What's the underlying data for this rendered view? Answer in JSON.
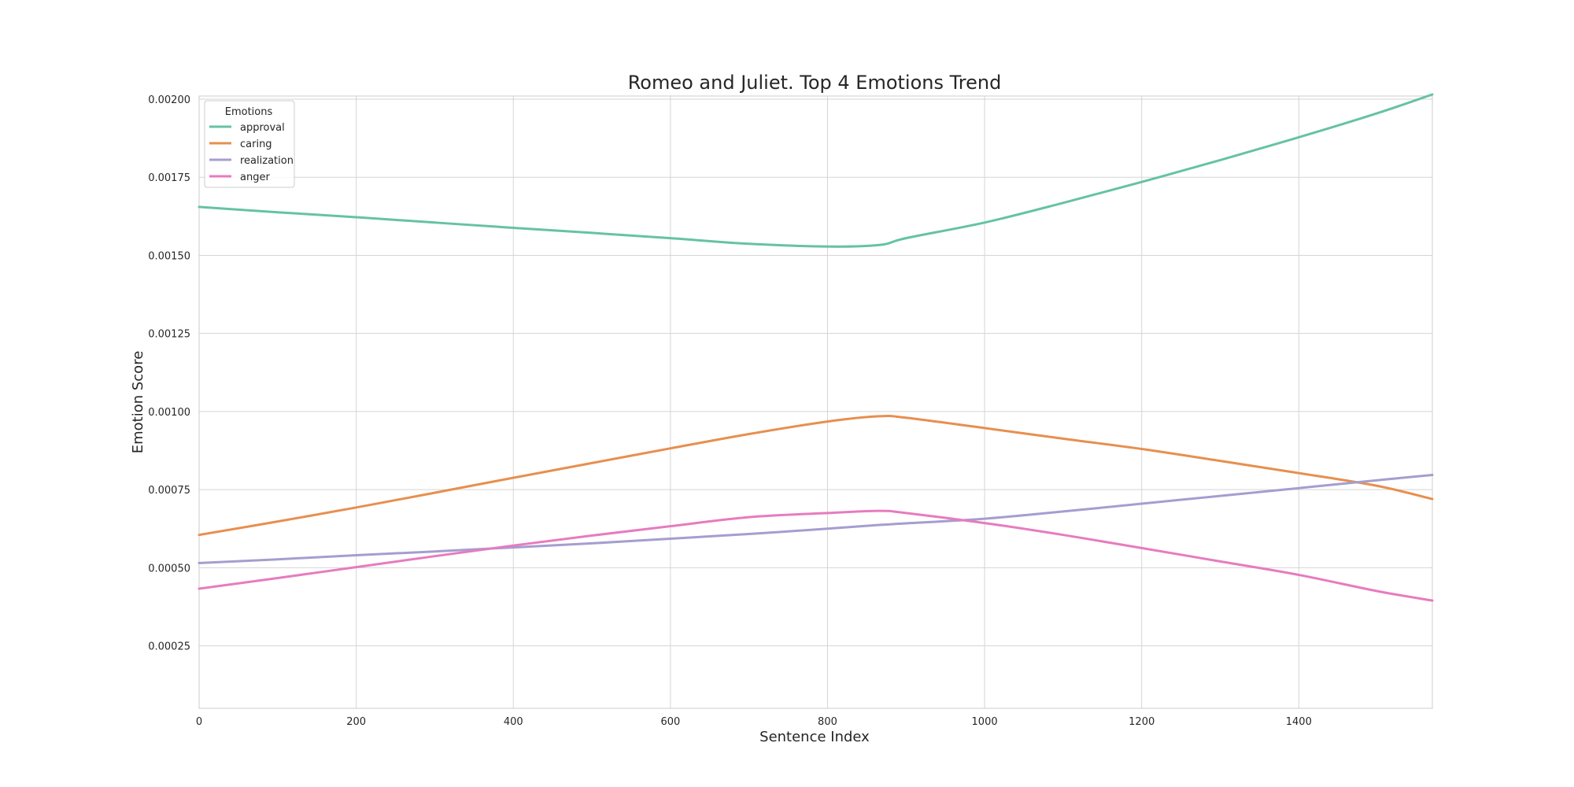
{
  "chart_data": {
    "type": "line",
    "title": "Romeo and Juliet. Top 4 Emotions Trend",
    "xlabel": "Sentence Index",
    "ylabel": "Emotion Score",
    "xlim": [
      0,
      1570
    ],
    "ylim": [
      5e-05,
      0.00201
    ],
    "x_ticks": [
      0,
      200,
      400,
      600,
      800,
      1000,
      1200,
      1400
    ],
    "x_tick_labels": [
      "0",
      "200",
      "400",
      "600",
      "800",
      "1000",
      "1200",
      "1400"
    ],
    "y_ticks": [
      0.00025,
      0.0005,
      0.00075,
      0.001,
      0.00125,
      0.0015,
      0.00175,
      0.002
    ],
    "y_tick_labels": [
      "0.00025",
      "0.00050",
      "0.00075",
      "0.00100",
      "0.00125",
      "0.00150",
      "0.00175",
      "0.00200"
    ],
    "grid": true,
    "legend": {
      "title": "Emotions",
      "placement": "top-left"
    },
    "x": [
      0,
      100,
      200,
      300,
      400,
      500,
      600,
      700,
      800,
      866,
      900,
      1000,
      1100,
      1200,
      1300,
      1400,
      1500,
      1570
    ],
    "series": [
      {
        "name": "approval",
        "color": "#66c2a5",
        "values": [
          0.001655,
          0.001638,
          0.001622,
          0.001605,
          0.001588,
          0.001572,
          0.001555,
          0.001537,
          0.001528,
          0.001533,
          0.001555,
          0.001605,
          0.001668,
          0.001735,
          0.001805,
          0.001878,
          0.001955,
          0.002015
        ]
      },
      {
        "name": "caring",
        "color": "#e78f4f",
        "values": [
          0.000605,
          0.000648,
          0.000693,
          0.00074,
          0.000788,
          0.000835,
          0.000882,
          0.000928,
          0.000968,
          0.000985,
          0.00098,
          0.000947,
          0.000913,
          0.00088,
          0.000842,
          0.000803,
          0.000762,
          0.00072
        ]
      },
      {
        "name": "realization",
        "color": "#a49ed0",
        "values": [
          0.000515,
          0.000527,
          0.00054,
          0.000552,
          0.000565,
          0.000578,
          0.000593,
          0.000608,
          0.000625,
          0.000637,
          0.000642,
          0.000657,
          0.00068,
          0.000705,
          0.00073,
          0.000755,
          0.00078,
          0.000797
        ]
      },
      {
        "name": "anger",
        "color": "#e77bbf",
        "values": [
          0.000433,
          0.000467,
          0.000502,
          0.000537,
          0.000571,
          0.000603,
          0.000633,
          0.000662,
          0.000675,
          0.000682,
          0.000675,
          0.000643,
          0.000605,
          0.000563,
          0.00052,
          0.000477,
          0.000425,
          0.000395
        ]
      }
    ]
  }
}
